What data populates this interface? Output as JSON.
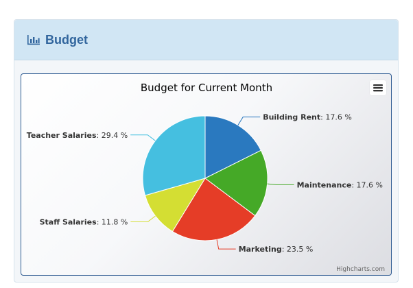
{
  "panel": {
    "title": "Budget",
    "icon": "bar-chart-icon",
    "accent": "#31659d"
  },
  "chart_menu": {
    "icon": "hamburger-menu-icon"
  },
  "credits": "Highcharts.com",
  "chart_data": {
    "type": "pie",
    "title": "Budget for Current Month",
    "value_suffix": "%",
    "label_format": "{name}: {value} %",
    "slices": [
      {
        "name": "Building Rent",
        "value": 17.6,
        "color": "#2a79bf"
      },
      {
        "name": "Maintenance",
        "value": 17.6,
        "color": "#45a927"
      },
      {
        "name": "Marketing",
        "value": 23.5,
        "color": "#e53d27"
      },
      {
        "name": "Staff Salaries",
        "value": 11.8,
        "color": "#d4de33"
      },
      {
        "name": "Teacher Salaries",
        "value": 29.4,
        "color": "#45bfe0"
      }
    ]
  }
}
